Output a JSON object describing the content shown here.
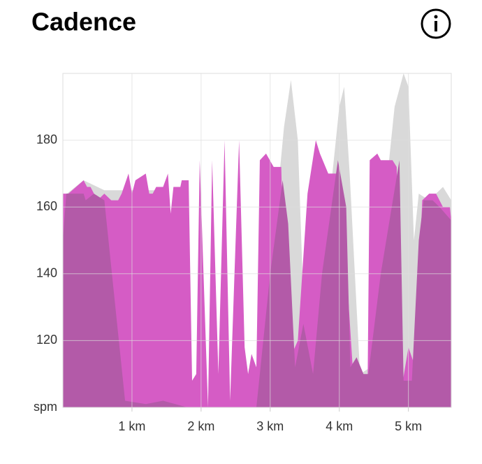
{
  "chart_data": {
    "type": "area",
    "title": "Cadence",
    "xlim": [
      0,
      5.62
    ],
    "ylim": [
      100,
      200
    ],
    "xticks": [
      {
        "value": 1,
        "label": "1 km"
      },
      {
        "value": 2,
        "label": "2 km"
      },
      {
        "value": 3,
        "label": "3 km"
      },
      {
        "value": 4,
        "label": "4 km"
      },
      {
        "value": 5,
        "label": "5 km"
      }
    ],
    "yticks": [
      {
        "value": 100,
        "label": "spm"
      },
      120,
      140,
      160,
      180
    ],
    "grid": true,
    "series": [
      {
        "color": "#d9d9d9",
        "x": [
          0,
          0.3,
          0.6,
          1.5,
          1.8,
          2.0,
          2.8,
          3.0,
          3.2,
          3.3,
          3.4,
          3.5,
          3.62,
          3.8,
          4.0,
          4.07,
          4.15,
          4.3,
          4.45,
          4.6,
          4.8,
          4.93,
          5.0,
          5.08,
          5.15,
          5.3,
          5.5,
          5.62
        ],
        "values": [
          163,
          168,
          165,
          165,
          110,
          100,
          100,
          140,
          184,
          198,
          180,
          120,
          110,
          150,
          190,
          196,
          170,
          110,
          112,
          150,
          190,
          200,
          196,
          150,
          164,
          162,
          166,
          162
        ]
      },
      {
        "color": "#d55cc5",
        "x": [
          0,
          0.08,
          0.3,
          0.35,
          0.4,
          0.5,
          0.6,
          0.7,
          0.8,
          0.85,
          0.95,
          1.0,
          1.05,
          1.2,
          1.25,
          1.3,
          1.35,
          1.45,
          1.52,
          1.56,
          1.6,
          1.7,
          1.72,
          1.78,
          1.82,
          1.87,
          1.93,
          1.98,
          2.1,
          2.16,
          2.25,
          2.34,
          2.42,
          2.55,
          2.63,
          2.68,
          2.73,
          2.8,
          2.85,
          2.94,
          3.05,
          3.1,
          3.16,
          3.23,
          3.4,
          3.54,
          3.66,
          3.72,
          3.84,
          3.97,
          4.02,
          4.2,
          4.41,
          4.44,
          4.55,
          4.6,
          4.77,
          4.83,
          4.92,
          5.0,
          5.1,
          5.2,
          5.3,
          5.4,
          5.5,
          5.6,
          5.62
        ],
        "values": [
          164,
          164,
          168,
          166,
          166,
          162,
          164,
          162,
          162,
          164,
          170,
          164,
          168,
          170,
          164,
          164,
          166,
          166,
          170,
          158,
          166,
          166,
          168,
          168,
          168,
          108,
          110,
          174,
          100,
          174,
          110,
          180,
          102,
          180,
          118,
          110,
          116,
          112,
          174,
          176,
          172,
          172,
          172,
          112,
          120,
          164,
          180,
          176,
          170,
          170,
          168,
          110,
          108,
          174,
          176,
          174,
          174,
          172,
          108,
          118,
          112,
          162,
          164,
          164,
          160,
          160,
          156
        ]
      },
      {
        "color": "#b35aa8",
        "x": [
          0,
          0.05,
          0.3,
          0.33,
          0.45,
          0.6,
          0.9,
          1.2,
          1.45,
          1.8,
          2.8,
          3.0,
          3.18,
          3.26,
          3.36,
          3.48,
          3.62,
          3.75,
          3.98,
          4.1,
          4.16,
          4.25,
          4.35,
          4.42,
          4.6,
          4.87,
          4.93,
          5.05,
          5.15,
          5.22,
          5.35,
          5.45,
          5.62
        ],
        "values": [
          150,
          164,
          164,
          162,
          164,
          162,
          102,
          101,
          102,
          100,
          100,
          140,
          168,
          155,
          112,
          125,
          110,
          140,
          174,
          160,
          112,
          115,
          110,
          110,
          140,
          174,
          108,
          108,
          150,
          162,
          162,
          160,
          156
        ]
      }
    ]
  }
}
